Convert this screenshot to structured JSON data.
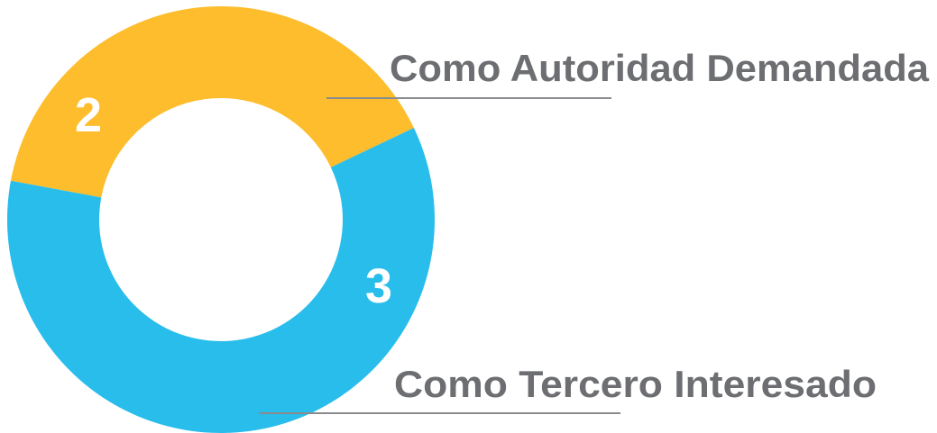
{
  "chart_data": {
    "type": "donut",
    "categories": [
      "Como Autoridad Demandada",
      "Como Tercero Interesado"
    ],
    "values": [
      2,
      3
    ],
    "colors": [
      "#fdbd2c",
      "#29bdec"
    ]
  }
}
